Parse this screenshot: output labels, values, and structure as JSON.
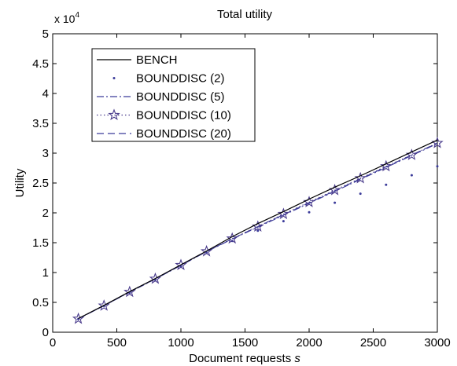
{
  "chart_data": {
    "type": "line",
    "title": "Total utility",
    "xlabel": "Document requests",
    "xlabel_symbol": "s",
    "ylabel": "Utility",
    "y_multiplier_base": "x 10",
    "y_multiplier_exp": "4",
    "xlim": [
      0,
      3000
    ],
    "ylim": [
      0,
      50000
    ],
    "x_ticks": [
      0,
      500,
      1000,
      1500,
      2000,
      2500,
      3000
    ],
    "x_tick_labels": [
      "0",
      "500",
      "1000",
      "1500",
      "2000",
      "2500",
      "3000"
    ],
    "y_ticks": [
      0,
      5000,
      10000,
      15000,
      20000,
      25000,
      30000,
      35000,
      40000,
      45000,
      50000
    ],
    "y_tick_labels": [
      "0",
      "0.5",
      "1",
      "1.5",
      "2",
      "2.5",
      "3",
      "3.5",
      "4",
      "4.5",
      "5"
    ],
    "grid": false,
    "legend_position": "top-left",
    "x": [
      200,
      400,
      600,
      800,
      1000,
      1200,
      1400,
      1600,
      1800,
      2000,
      2200,
      2400,
      2600,
      2800,
      3000
    ],
    "series": [
      {
        "name": "BENCH",
        "style": "solid",
        "marker": "none",
        "color": "#000000",
        "values": [
          2300,
          4500,
          6800,
          9000,
          11300,
          13600,
          16000,
          18200,
          20200,
          22300,
          24300,
          26200,
          28200,
          30200,
          32200
        ]
      },
      {
        "name": "BOUNDDISC (2)",
        "style": "none",
        "marker": "dot",
        "color": "#3b3b9a",
        "values": [
          2200,
          4400,
          6600,
          8800,
          11000,
          13300,
          15300,
          17000,
          18600,
          20100,
          21700,
          23200,
          24700,
          26300,
          27800
        ]
      },
      {
        "name": "BOUNDDISC (5)",
        "style": "dashdot",
        "marker": "none",
        "color": "#3b3b9a",
        "values": [
          2250,
          4450,
          6700,
          8900,
          11200,
          13500,
          15600,
          17600,
          19600,
          21600,
          23600,
          25600,
          27600,
          29600,
          31600
        ]
      },
      {
        "name": "BOUNDDISC (10)",
        "style": "dotted",
        "marker": "star",
        "color": "#4a3c8c",
        "values": [
          2250,
          4450,
          6750,
          8950,
          11250,
          13550,
          15700,
          17700,
          19800,
          21800,
          23800,
          25800,
          27800,
          29700,
          31700
        ]
      },
      {
        "name": "BOUNDDISC (20)",
        "style": "dashed",
        "marker": "none",
        "color": "#3b3b9a",
        "values": [
          2250,
          4450,
          6750,
          8950,
          11250,
          13550,
          15650,
          17700,
          19700,
          21700,
          23700,
          25700,
          27700,
          29700,
          31700
        ]
      }
    ]
  }
}
